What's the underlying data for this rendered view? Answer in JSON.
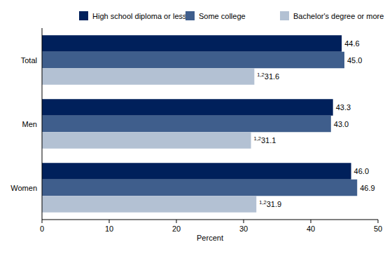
{
  "chart_data": {
    "type": "bar",
    "orientation": "horizontal",
    "x_label": "Percent",
    "categories": [
      "Total",
      "Men",
      "Women"
    ],
    "series": [
      {
        "name": "High school diploma or less",
        "color": "#00205b",
        "values": [
          44.6,
          43.3,
          46.0
        ],
        "value_labels": [
          "44.6",
          "43.3",
          "46.0"
        ]
      },
      {
        "name": "Some college",
        "color": "#3f5e8c",
        "values": [
          45.0,
          43.0,
          46.9
        ],
        "value_labels": [
          "45.0",
          "43.0",
          "46.9"
        ]
      },
      {
        "name": "Bachelor's degree or more",
        "color": "#b3c1d3",
        "values": [
          31.6,
          31.1,
          31.9
        ],
        "value_labels": [
          "31.6",
          "31.1",
          "31.9"
        ],
        "superscripts": [
          "1,2",
          "1,2",
          "1,2"
        ]
      }
    ],
    "xlim": [
      0,
      50
    ],
    "xticks": [
      0,
      10,
      20,
      30,
      40,
      50
    ],
    "grid": false,
    "legend": "top",
    "data_labels": true
  }
}
